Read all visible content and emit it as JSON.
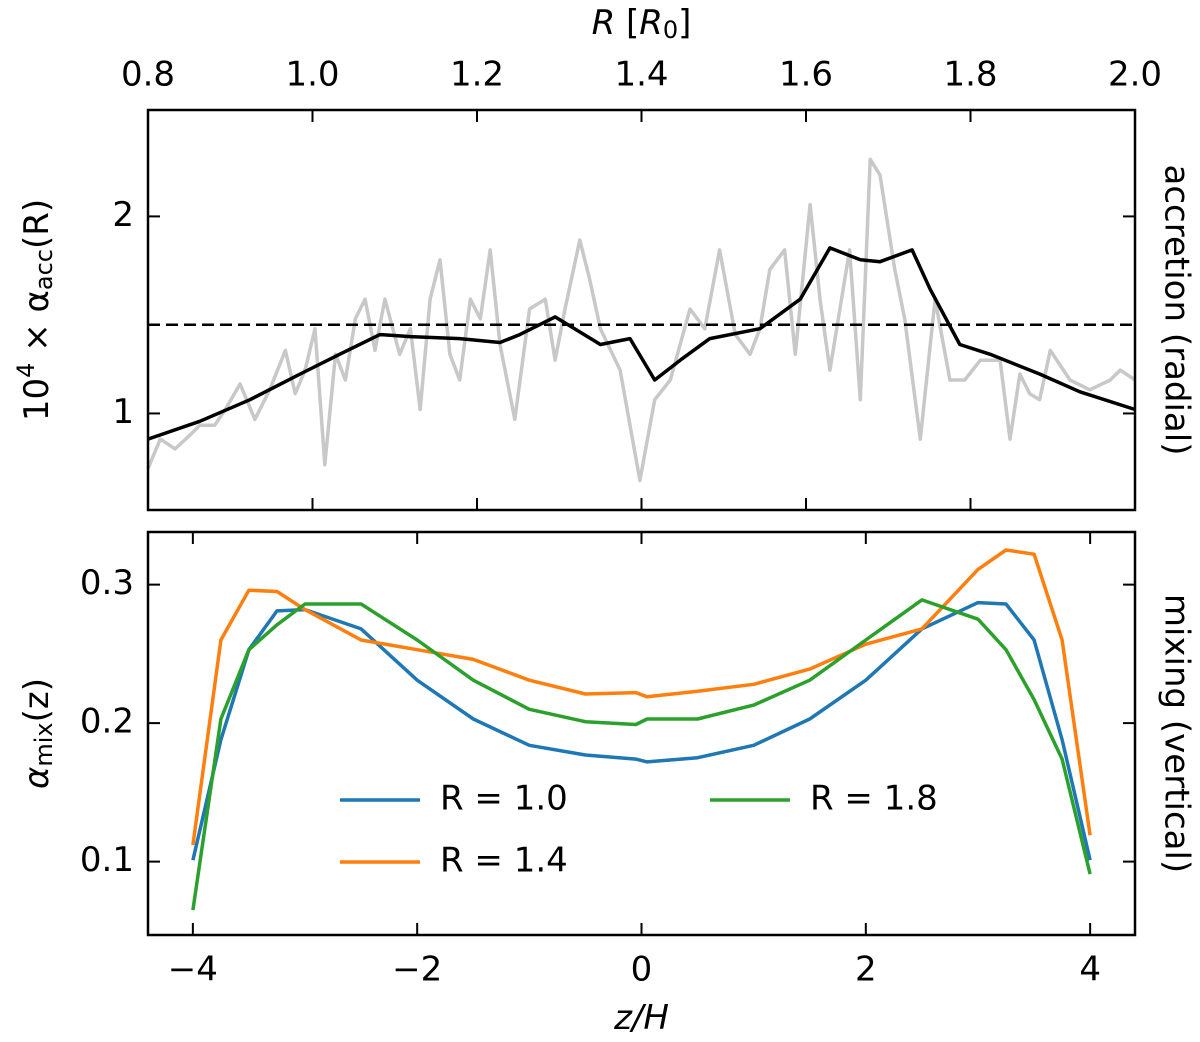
{
  "chart_data": [
    {
      "type": "line",
      "xlabel": [
        "R",
        " [",
        "R",
        "0",
        "]"
      ],
      "ylabel": [
        "10",
        "4",
        " × α",
        "acc",
        "(R)"
      ],
      "right_label": "accretion (radial)",
      "xaxis_position": "top",
      "xlim": [
        0.8,
        2.0
      ],
      "xticks": [
        0.8,
        {
          "value": 1,
          "label": "1.0"
        },
        1.2,
        1.4,
        1.6,
        1.8,
        {
          "value": 2,
          "label": "2.0"
        }
      ],
      "ylim": [
        0.51,
        2.54
      ],
      "yticks": [
        1,
        2
      ],
      "hline": 1.45,
      "hline_style": "dashed",
      "series": [
        {
          "color": "#c8c8c8",
          "x": [
            0.8,
            0.815,
            0.833,
            0.851,
            0.863,
            0.881,
            0.894,
            0.912,
            0.93,
            0.948,
            0.967,
            0.979,
            0.991,
            1.003,
            1.015,
            1.028,
            1.04,
            1.052,
            1.064,
            1.076,
            1.088,
            1.106,
            1.119,
            1.131,
            1.143,
            1.155,
            1.167,
            1.179,
            1.192,
            1.204,
            1.216,
            1.228,
            1.246,
            1.264,
            1.283,
            1.295,
            1.307,
            1.325,
            1.337,
            1.35,
            1.374,
            1.398,
            1.416,
            1.435,
            1.459,
            1.477,
            1.495,
            1.514,
            1.532,
            1.544,
            1.556,
            1.574,
            1.587,
            1.605,
            1.617,
            1.629,
            1.653,
            1.666,
            1.678,
            1.69,
            1.708,
            1.72,
            1.739,
            1.757,
            1.775,
            1.793,
            1.812,
            1.836,
            1.848,
            1.86,
            1.872,
            1.884,
            1.897,
            1.921,
            1.945,
            1.97,
            1.982,
            2.0
          ],
          "values": [
            0.72,
            0.87,
            0.82,
            0.89,
            0.94,
            0.94,
            1.02,
            1.15,
            0.97,
            1.12,
            1.32,
            1.1,
            1.22,
            1.43,
            0.74,
            1.3,
            1.17,
            1.48,
            1.58,
            1.32,
            1.58,
            1.3,
            1.43,
            1.02,
            1.58,
            1.78,
            1.3,
            1.17,
            1.58,
            1.48,
            1.83,
            1.35,
            0.97,
            1.53,
            1.58,
            1.27,
            1.53,
            1.88,
            1.68,
            1.43,
            1.22,
            0.66,
            1.07,
            1.17,
            1.53,
            1.43,
            1.83,
            1.4,
            1.3,
            1.43,
            1.73,
            1.83,
            1.3,
            2.06,
            1.58,
            1.22,
            1.83,
            1.07,
            2.29,
            2.21,
            1.73,
            1.48,
            0.87,
            1.58,
            1.17,
            1.17,
            1.27,
            1.27,
            0.87,
            1.2,
            1.1,
            1.07,
            1.32,
            1.17,
            1.12,
            1.17,
            1.22,
            1.17
          ]
        },
        {
          "color": "#000000",
          "x": [
            0.8,
            0.863,
            0.924,
            0.985,
            1.033,
            1.082,
            1.119,
            1.179,
            1.228,
            1.252,
            1.295,
            1.35,
            1.386,
            1.416,
            1.447,
            1.483,
            1.544,
            1.593,
            1.629,
            1.666,
            1.69,
            1.729,
            1.751,
            1.787,
            1.824,
            1.884,
            1.933,
            2.0
          ],
          "values": [
            0.87,
            0.96,
            1.07,
            1.2,
            1.3,
            1.4,
            1.39,
            1.38,
            1.36,
            1.4,
            1.49,
            1.35,
            1.38,
            1.17,
            1.27,
            1.38,
            1.43,
            1.58,
            1.84,
            1.78,
            1.77,
            1.83,
            1.63,
            1.35,
            1.3,
            1.2,
            1.11,
            1.02
          ]
        }
      ]
    },
    {
      "type": "line",
      "xlabel": [
        "z/H"
      ],
      "ylabel": [
        "α",
        "mix",
        "(z)"
      ],
      "right_label": "mixing (vertical)",
      "xaxis_position": "bottom",
      "xlim": [
        -4.4,
        4.4
      ],
      "xticks": [
        {
          "value": -4,
          "label": "−4"
        },
        {
          "value": -2,
          "label": "−2"
        },
        0,
        2,
        4
      ],
      "ylim": [
        0.047,
        0.338
      ],
      "yticks": [
        0.1,
        0.2,
        0.3
      ],
      "legend_columns": 2,
      "x": [
        -4,
        -3.75,
        -3.5,
        -3.25,
        -3,
        -2.5,
        -2,
        -1.5,
        -1,
        -0.5,
        -0.05,
        0.05,
        0.5,
        1,
        1.5,
        2,
        2.5,
        3,
        3.25,
        3.5,
        3.75,
        4
      ],
      "series": [
        {
          "name": "R = 1.0",
          "color": "#1f77b4",
          "values": [
            0.101,
            0.188,
            0.253,
            0.281,
            0.282,
            0.268,
            0.231,
            0.203,
            0.184,
            0.177,
            0.174,
            0.172,
            0.175,
            0.184,
            0.203,
            0.231,
            0.268,
            0.287,
            0.286,
            0.26,
            0.188,
            0.101
          ]
        },
        {
          "name": "R = 1.4",
          "color": "#ff7f0e",
          "values": [
            0.112,
            0.26,
            0.296,
            0.295,
            0.282,
            0.26,
            0.253,
            0.246,
            0.231,
            0.221,
            0.222,
            0.219,
            0.223,
            0.228,
            0.239,
            0.257,
            0.268,
            0.311,
            0.325,
            0.322,
            0.26,
            0.119
          ]
        },
        {
          "name": "R = 1.8",
          "color": "#2ca02c",
          "values": [
            0.065,
            0.203,
            0.253,
            0.271,
            0.286,
            0.286,
            0.26,
            0.231,
            0.21,
            0.201,
            0.199,
            0.203,
            0.203,
            0.213,
            0.231,
            0.26,
            0.289,
            0.275,
            0.253,
            0.217,
            0.174,
            0.091
          ]
        }
      ]
    }
  ]
}
